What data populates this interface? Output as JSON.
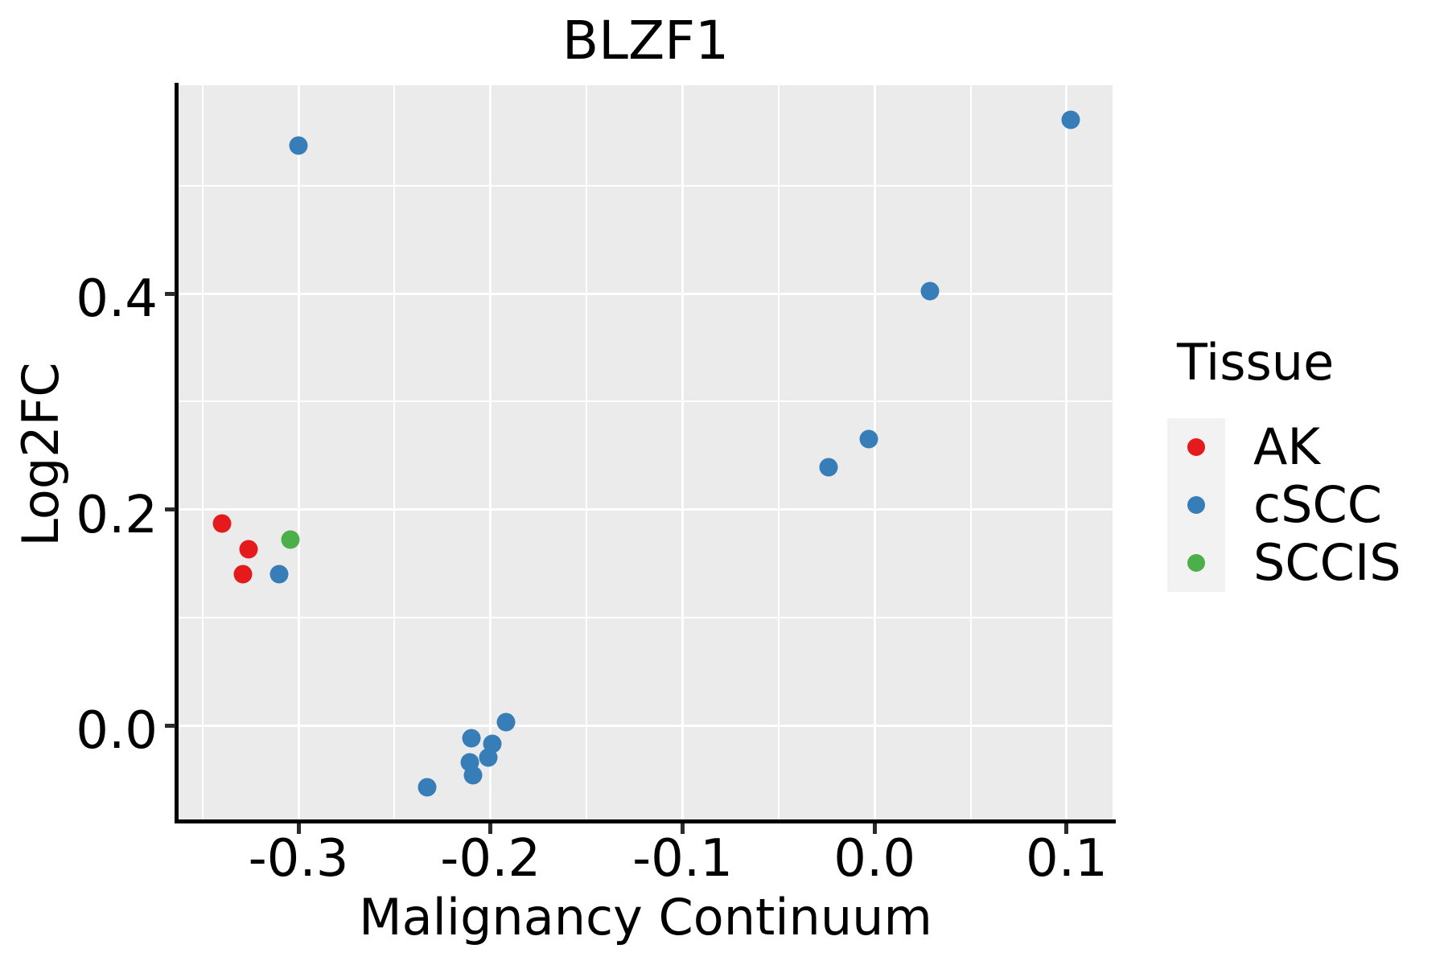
{
  "chart_data": {
    "type": "scatter",
    "title": "BLZF1",
    "xlabel": "Malignancy Continuum",
    "ylabel": "Log2FC",
    "grid": true,
    "panel_bg": "#EBEBEB",
    "grid_color": "#FFFFFF",
    "x_range": [
      -0.3624,
      0.1239
    ],
    "y_range": [
      -0.0871,
      0.5929
    ],
    "x_major_ticks": [
      {
        "value": -0.3,
        "label": "-0.3"
      },
      {
        "value": -0.2,
        "label": "-0.2"
      },
      {
        "value": -0.1,
        "label": "-0.1"
      },
      {
        "value": 0.0,
        "label": "0.0"
      },
      {
        "value": 0.1,
        "label": "0.1"
      }
    ],
    "x_minor_ticks": [
      -0.35,
      -0.25,
      -0.15,
      -0.05,
      0.05
    ],
    "y_major_ticks": [
      {
        "value": 0.0,
        "label": "0.0"
      },
      {
        "value": 0.2,
        "label": "0.2"
      },
      {
        "value": 0.4,
        "label": "0.4"
      }
    ],
    "y_minor_ticks": [
      0.1,
      0.3,
      0.5
    ],
    "marker_diameter_px": 23,
    "legend_position": "right",
    "series": [
      {
        "name": "AK",
        "color": "#E41A1C",
        "points": [
          [
            -0.34,
            0.187
          ],
          [
            -0.326,
            0.163
          ],
          [
            -0.329,
            0.14
          ]
        ]
      },
      {
        "name": "cSCC",
        "color": "#377EB8",
        "points": [
          [
            -0.3,
            0.537
          ],
          [
            0.102,
            0.561
          ],
          [
            0.029,
            0.402
          ],
          [
            -0.003,
            0.265
          ],
          [
            -0.024,
            0.239
          ],
          [
            -0.31,
            0.14
          ],
          [
            -0.233,
            -0.057
          ],
          [
            -0.21,
            -0.012
          ],
          [
            -0.211,
            -0.034
          ],
          [
            -0.209,
            -0.046
          ],
          [
            -0.201,
            -0.03
          ],
          [
            -0.199,
            -0.017
          ],
          [
            -0.192,
            0.003
          ]
        ]
      },
      {
        "name": "SCCIS",
        "color": "#4DAF4A",
        "points": [
          [
            -0.304,
            0.172
          ]
        ]
      }
    ]
  },
  "legend": {
    "title": "Tissue",
    "entries": [
      {
        "label": "AK",
        "color": "#E41A1C"
      },
      {
        "label": "cSCC",
        "color": "#377EB8"
      },
      {
        "label": "SCCIS",
        "color": "#4DAF4A"
      }
    ]
  }
}
